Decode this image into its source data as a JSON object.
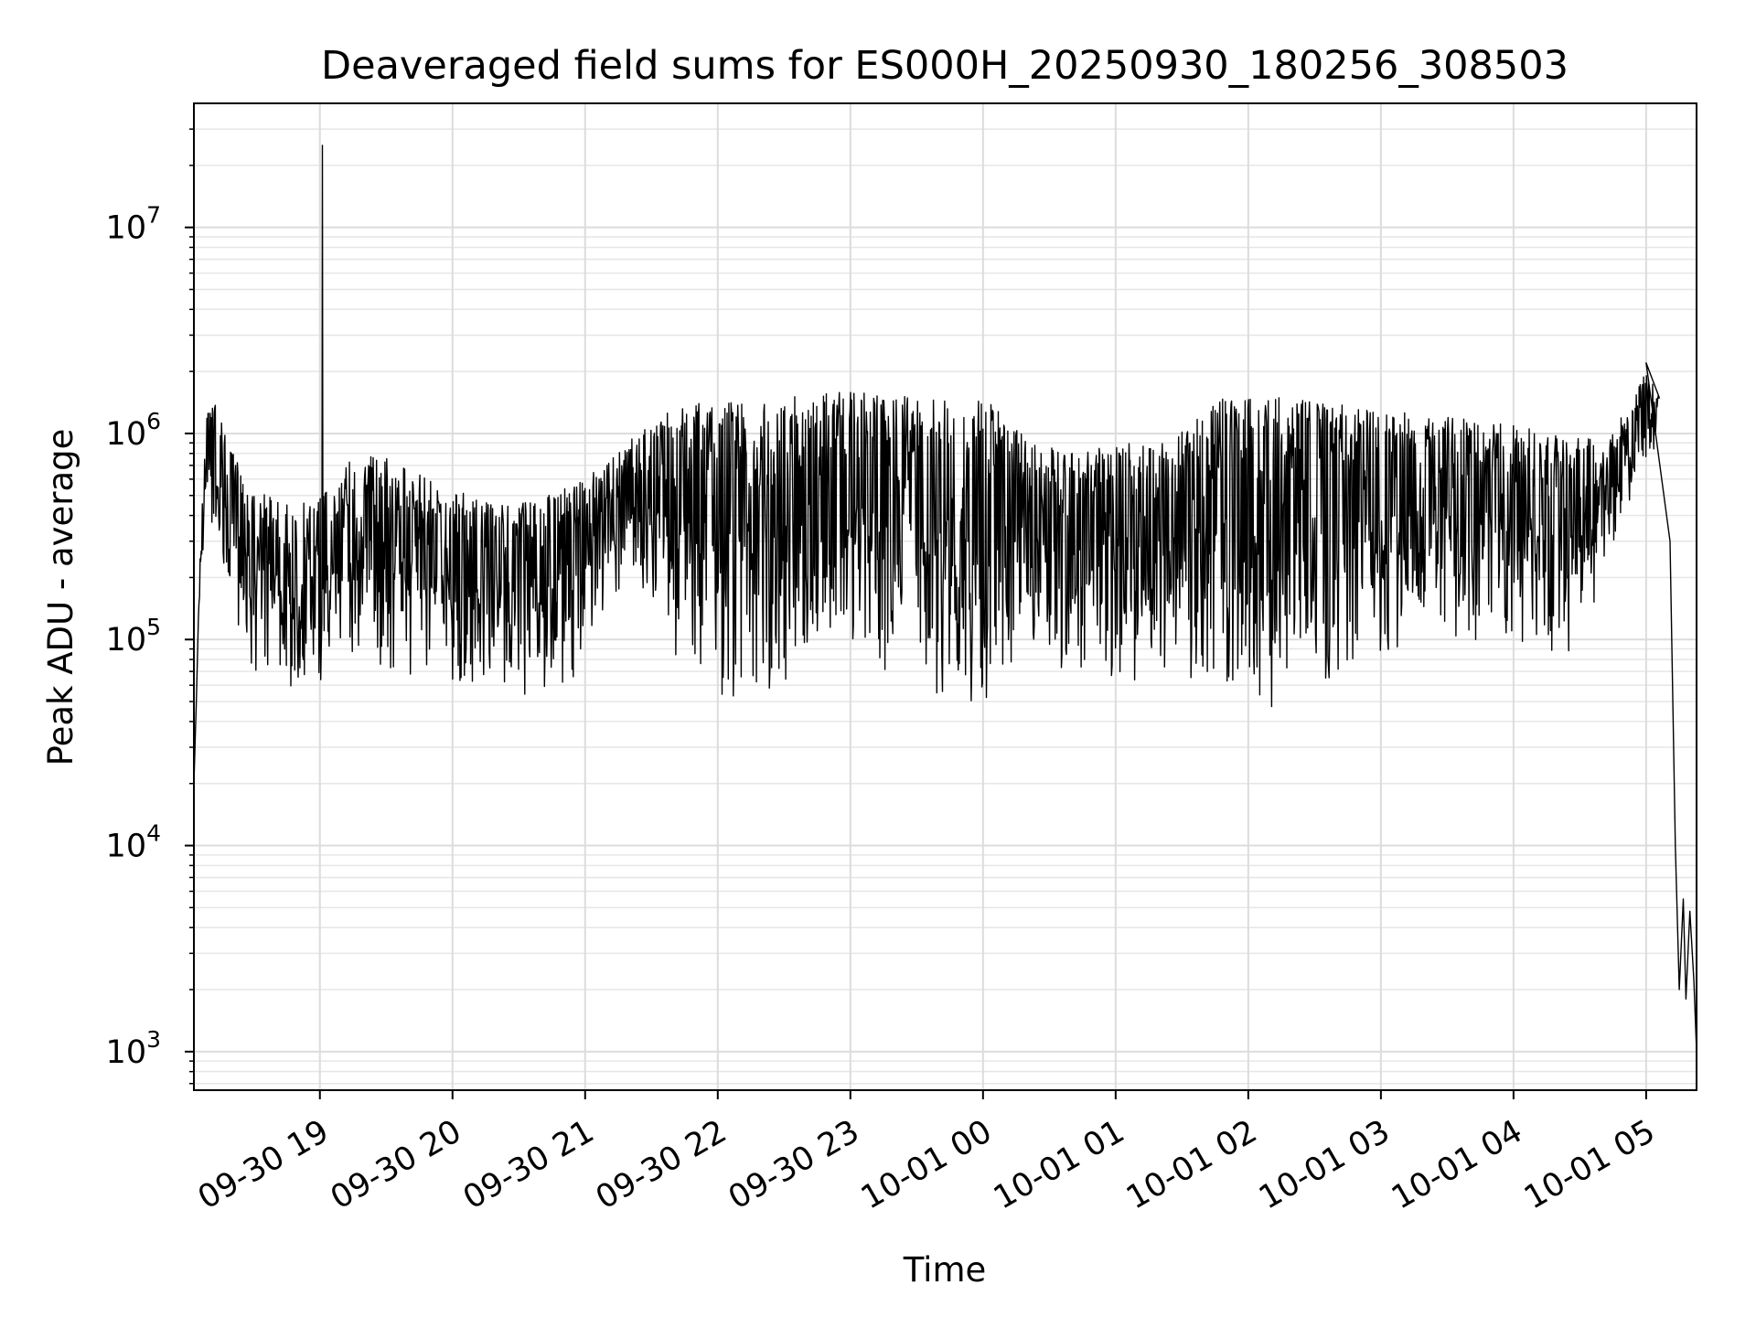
{
  "chart_data": {
    "type": "line",
    "title": "Deaveraged field sums for ES000H_20250930_180256_308503",
    "xlabel": "Time",
    "ylabel": "Peak ADU - average",
    "yscale": "log",
    "ylim": [
      650,
      40000000
    ],
    "xlim_hours": [
      18.05,
      29.38
    ],
    "grid": true,
    "x_ticks": [
      {
        "label": "09-30 19",
        "hour": 19
      },
      {
        "label": "09-30 20",
        "hour": 20
      },
      {
        "label": "09-30 21",
        "hour": 21
      },
      {
        "label": "09-30 22",
        "hour": 22
      },
      {
        "label": "09-30 23",
        "hour": 23
      },
      {
        "label": "10-01 00",
        "hour": 24
      },
      {
        "label": "10-01 01",
        "hour": 25
      },
      {
        "label": "10-01 02",
        "hour": 26
      },
      {
        "label": "10-01 03",
        "hour": 27
      },
      {
        "label": "10-01 04",
        "hour": 28
      },
      {
        "label": "10-01 05",
        "hour": 29
      }
    ],
    "y_ticks": [
      {
        "base": "10",
        "exp": "3",
        "value": 1000
      },
      {
        "base": "10",
        "exp": "4",
        "value": 10000
      },
      {
        "base": "10",
        "exp": "5",
        "value": 100000
      },
      {
        "base": "10",
        "exp": "6",
        "value": 1000000
      },
      {
        "base": "10",
        "exp": "7",
        "value": 10000000
      }
    ],
    "series": [
      {
        "name": "Peak ADU - average",
        "color": "#000000",
        "envelope": [
          {
            "hour": 18.05,
            "low": 20000,
            "high": 20000
          },
          {
            "hour": 18.1,
            "low": 200000,
            "high": 300000
          },
          {
            "hour": 18.15,
            "low": 400000,
            "high": 1600000
          },
          {
            "hour": 18.2,
            "low": 300000,
            "high": 1800000
          },
          {
            "hour": 18.3,
            "low": 150000,
            "high": 900000
          },
          {
            "hour": 18.5,
            "low": 65000,
            "high": 550000
          },
          {
            "hour": 18.8,
            "low": 55000,
            "high": 450000
          },
          {
            "hour": 19.0,
            "low": 60000,
            "high": 500000
          },
          {
            "hour": 19.3,
            "low": 80000,
            "high": 900000
          },
          {
            "hour": 19.6,
            "low": 65000,
            "high": 700000
          },
          {
            "hour": 20.0,
            "low": 60000,
            "high": 550000
          },
          {
            "hour": 20.3,
            "low": 50000,
            "high": 450000
          },
          {
            "hour": 20.7,
            "low": 55000,
            "high": 500000
          },
          {
            "hour": 21.0,
            "low": 70000,
            "high": 600000
          },
          {
            "hour": 21.3,
            "low": 150000,
            "high": 900000
          },
          {
            "hour": 21.7,
            "low": 80000,
            "high": 1400000
          },
          {
            "hour": 22.0,
            "low": 45000,
            "high": 1500000
          },
          {
            "hour": 22.5,
            "low": 50000,
            "high": 1500000
          },
          {
            "hour": 23.0,
            "low": 80000,
            "high": 1600000
          },
          {
            "hour": 23.5,
            "low": 60000,
            "high": 1500000
          },
          {
            "hour": 24.0,
            "low": 45000,
            "high": 1500000
          },
          {
            "hour": 24.3,
            "low": 80000,
            "high": 1000000
          },
          {
            "hour": 24.7,
            "low": 70000,
            "high": 800000
          },
          {
            "hour": 25.0,
            "low": 65000,
            "high": 900000
          },
          {
            "hour": 25.4,
            "low": 60000,
            "high": 900000
          },
          {
            "hour": 25.8,
            "low": 55000,
            "high": 1500000
          },
          {
            "hour": 26.2,
            "low": 45000,
            "high": 1500000
          },
          {
            "hour": 26.6,
            "low": 60000,
            "high": 1400000
          },
          {
            "hour": 27.0,
            "low": 70000,
            "high": 1300000
          },
          {
            "hour": 27.5,
            "low": 100000,
            "high": 1200000
          },
          {
            "hour": 28.0,
            "low": 100000,
            "high": 1100000
          },
          {
            "hour": 28.4,
            "low": 80000,
            "high": 1000000
          },
          {
            "hour": 28.7,
            "low": 200000,
            "high": 900000
          },
          {
            "hour": 28.9,
            "low": 500000,
            "high": 1500000
          },
          {
            "hour": 29.0,
            "low": 700000,
            "high": 2000000
          },
          {
            "hour": 29.1,
            "low": 900000,
            "high": 1500000
          }
        ],
        "events": [
          {
            "hour": 19.02,
            "value": 25000000,
            "note": "spike"
          },
          {
            "hour": 29.0,
            "value": 2200000
          },
          {
            "hour": 29.18,
            "value": 300000
          },
          {
            "hour": 29.22,
            "value": 10000
          },
          {
            "hour": 29.25,
            "value": 2000
          },
          {
            "hour": 29.28,
            "value": 5500
          },
          {
            "hour": 29.3,
            "value": 1800
          },
          {
            "hour": 29.33,
            "value": 4800
          },
          {
            "hour": 29.36,
            "value": 2200
          },
          {
            "hour": 29.38,
            "value": 1000
          }
        ]
      }
    ]
  }
}
